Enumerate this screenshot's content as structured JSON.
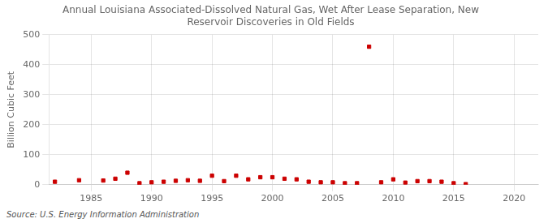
{
  "chart_data": {
    "type": "scatter",
    "title": "Annual Louisiana Associated-Dissolved Natural Gas, Wet After Lease Separation, New\nReservoir Discoveries in Old Fields",
    "ylabel": "Billion Cubic Feet",
    "annotation": "Source: U.S. Energy Information Administration",
    "x": [
      1982,
      1984,
      1986,
      1987,
      1988,
      1989,
      1990,
      1991,
      1992,
      1993,
      1994,
      1995,
      1996,
      1997,
      1998,
      1999,
      2000,
      2001,
      2002,
      2003,
      2004,
      2005,
      2006,
      2007,
      2008,
      2009,
      2010,
      2011,
      2012,
      2013,
      2014,
      2015,
      2016
    ],
    "values": [
      10,
      15,
      14,
      20,
      40,
      5,
      8,
      10,
      13,
      15,
      13,
      30,
      12,
      30,
      18,
      25,
      25,
      20,
      18,
      10,
      8,
      8,
      5,
      5,
      460,
      8,
      18,
      7,
      12,
      12,
      10,
      5,
      2
    ],
    "color": "#cc0000",
    "marker": "square",
    "xlim": [
      1981.5,
      2022
    ],
    "xticks": [
      1985,
      1990,
      1995,
      2000,
      2005,
      2010,
      2015,
      2020
    ],
    "ylim": [
      0,
      500
    ],
    "yticks": [
      0,
      100,
      200,
      300,
      400,
      500
    ],
    "grid": true
  }
}
